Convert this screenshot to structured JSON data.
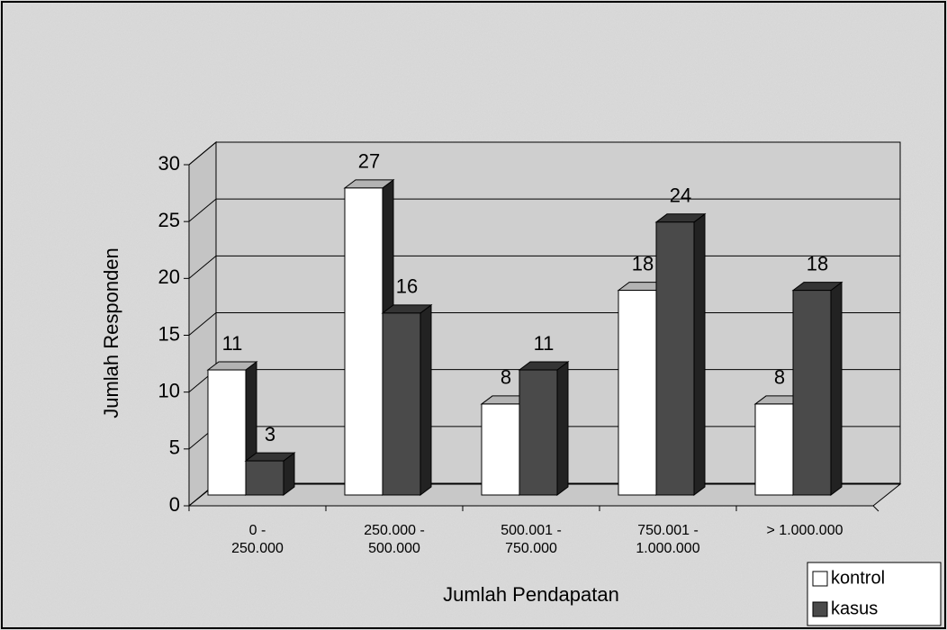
{
  "chart_data": {
    "type": "bar3d",
    "xlabel": "Jumlah Pendapatan",
    "ylabel": "Jumlah Responden",
    "categories": [
      "0 - 250.000",
      "250.000 - 500.000",
      "500.001 - 750.000",
      "750.001 - 1.000.000",
      "> 1.000.000"
    ],
    "series": [
      {
        "name": "kontrol",
        "color": "#ffffff",
        "values": [
          11,
          27,
          8,
          18,
          8
        ]
      },
      {
        "name": "kasus",
        "color": "#4a4a4a",
        "values": [
          3,
          16,
          11,
          24,
          18
        ]
      }
    ],
    "ylim": [
      0,
      30
    ],
    "yticks": [
      0,
      5,
      10,
      15,
      20,
      25,
      30
    ],
    "grid": true,
    "legend": "bottom-right"
  }
}
